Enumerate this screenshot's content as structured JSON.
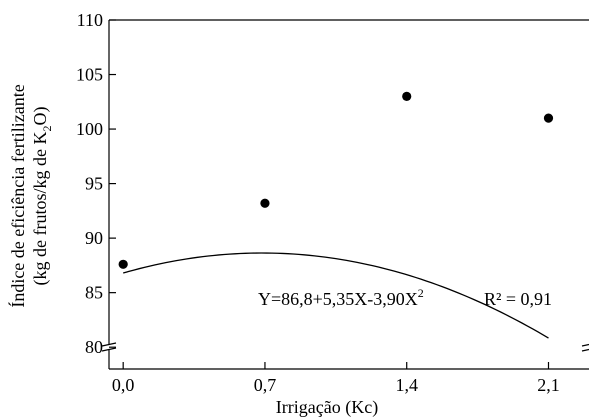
{
  "chart_data": {
    "type": "scatter",
    "x": [
      0.0,
      0.7,
      1.4,
      2.1
    ],
    "y": [
      87.6,
      93.2,
      103.0,
      101.0
    ],
    "fit": {
      "model": "quadratic",
      "intercept": 86.8,
      "linear": 5.35,
      "quadratic": -3.9,
      "x_range": [
        0.0,
        2.1
      ]
    },
    "xlabel": "Irrigação (Kc)",
    "ylabel_line1": "Índice de eficiência fertilizante",
    "ylabel_line2_prefix": "(kg de frutos/kg de K",
    "ylabel_line2_sub": "2",
    "ylabel_line2_suffix": "O)",
    "xlim": [
      -0.07,
      2.3
    ],
    "ylim": [
      78,
      110
    ],
    "x_ticks": [
      0.0,
      0.7,
      1.4,
      2.1
    ],
    "x_tick_labels": [
      "0,0",
      "0,7",
      "1,4",
      "2,1"
    ],
    "y_ticks": [
      80,
      85,
      90,
      95,
      100,
      105,
      110
    ],
    "y_tick_labels": [
      "80",
      "85",
      "90",
      "95",
      "100",
      "105",
      "110"
    ],
    "equation_prefix": "Y=86,8+5,35X-3,90X",
    "equation_sup": "2",
    "r2_label": "R² = 0,91",
    "y_axis_break": true,
    "grid": false
  }
}
